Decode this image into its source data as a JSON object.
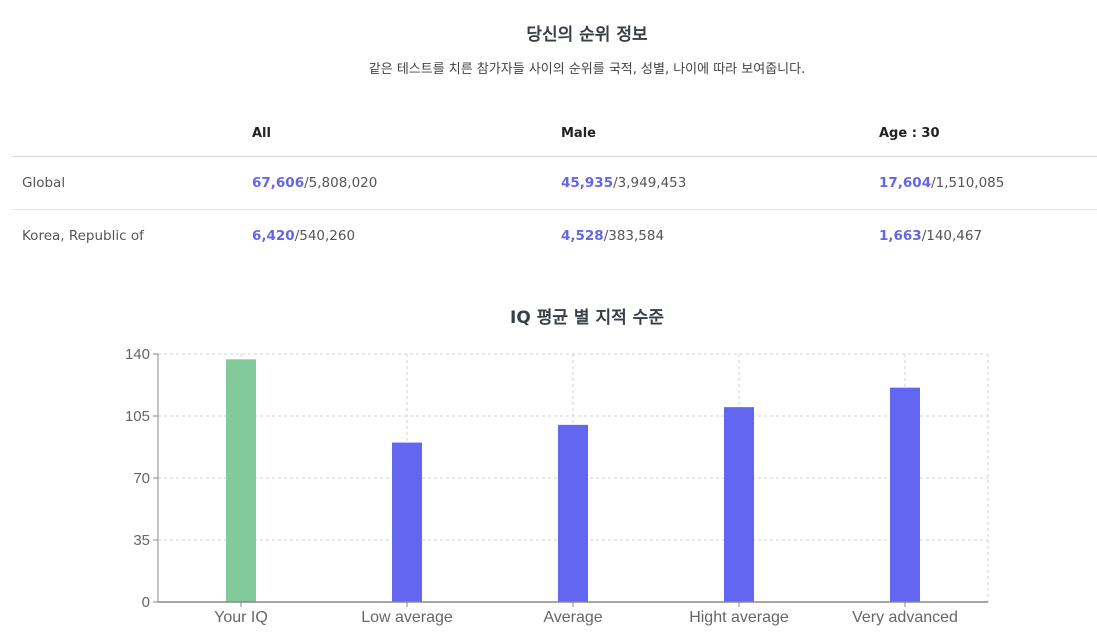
{
  "rank": {
    "title": "당신의 순위 정보",
    "subtitle": "같은 테스트를 치른 참가자들 사이의 순위를 국적, 성별, 나이에 따라 보여줍니다.",
    "headers": [
      "",
      "All",
      "Male",
      "Age : 30"
    ],
    "rows": [
      {
        "label": "Global",
        "cells": [
          {
            "rank": "67,606",
            "total": "/5,808,020"
          },
          {
            "rank": "45,935",
            "total": "/3,949,453"
          },
          {
            "rank": "17,604",
            "total": "/1,510,085"
          }
        ]
      },
      {
        "label": "Korea, Republic of",
        "cells": [
          {
            "rank": "6,420",
            "total": "/540,260"
          },
          {
            "rank": "4,528",
            "total": "/383,584"
          },
          {
            "rank": "1,663",
            "total": "/140,467"
          }
        ]
      }
    ]
  },
  "chart_data": {
    "type": "bar",
    "title": "IQ 평균 별 지적 수준",
    "categories": [
      "Your IQ",
      "Low average",
      "Average",
      "Hight average",
      "Very advanced"
    ],
    "values": [
      137,
      90,
      100,
      110,
      121
    ],
    "bar_colors": [
      "#82c99b",
      "#6366f1",
      "#6366f1",
      "#6366f1",
      "#6366f1"
    ],
    "yticks": [
      0,
      35,
      70,
      105,
      140
    ],
    "ylim": [
      0,
      140
    ],
    "grid": true,
    "xlabel": "",
    "ylabel": ""
  }
}
